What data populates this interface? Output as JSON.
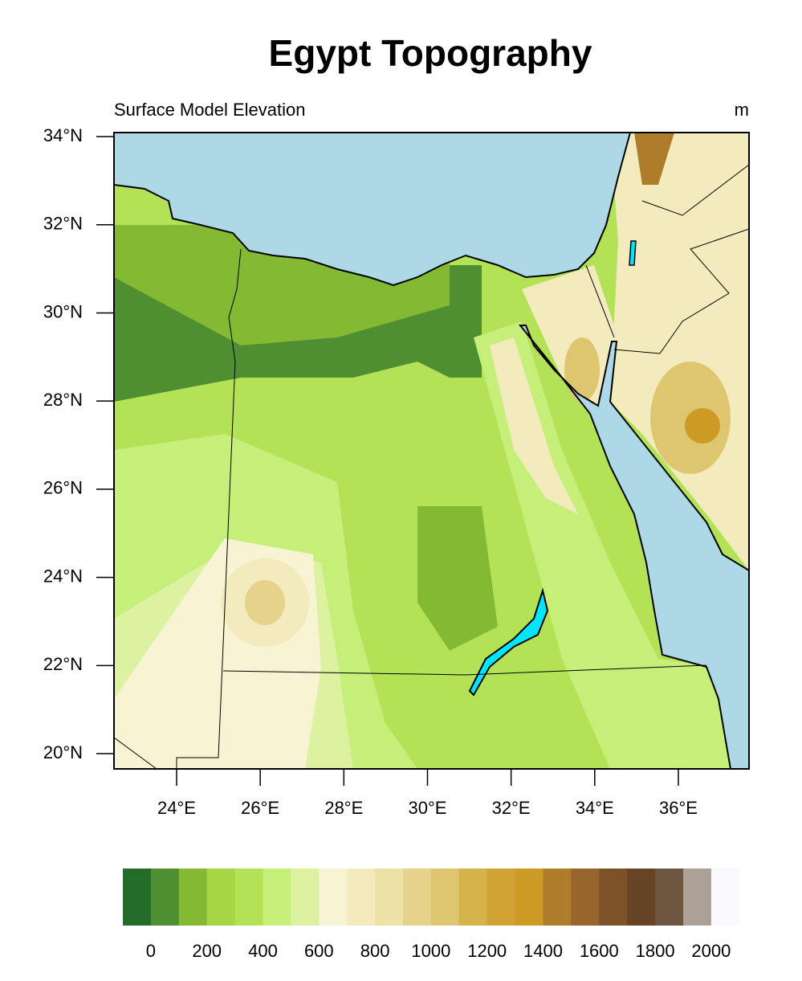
{
  "title": "Egypt Topography",
  "left_string": "Surface Model Elevation",
  "right_string": "m",
  "lat_ticks": [
    {
      "value": 34,
      "label": "34°N"
    },
    {
      "value": 32,
      "label": "32°N"
    },
    {
      "value": 30,
      "label": "30°N"
    },
    {
      "value": 28,
      "label": "28°N"
    },
    {
      "value": 26,
      "label": "26°N"
    },
    {
      "value": 24,
      "label": "24°N"
    },
    {
      "value": 22,
      "label": "22°N"
    },
    {
      "value": 20,
      "label": "20°N"
    }
  ],
  "lon_ticks": [
    {
      "value": 24,
      "label": "24°E"
    },
    {
      "value": 26,
      "label": "26°E"
    },
    {
      "value": 28,
      "label": "28°E"
    },
    {
      "value": 30,
      "label": "30°E"
    },
    {
      "value": 32,
      "label": "32°E"
    },
    {
      "value": 34,
      "label": "34°E"
    },
    {
      "value": 36,
      "label": "36°E"
    }
  ],
  "colorbar": {
    "colors": [
      "#236b29",
      "#4f8f31",
      "#84b933",
      "#a6d644",
      "#b3e256",
      "#c6ef7a",
      "#dcf2a1",
      "#f8f3d2",
      "#f3ebbe",
      "#ede2a5",
      "#e6d28b",
      "#ddc66f",
      "#d4b44a",
      "#cfa434",
      "#cd9a23",
      "#ad7d2a",
      "#98652e",
      "#7e5229",
      "#684427",
      "#6e5540",
      "#ada097",
      "#f8f8fd"
    ],
    "labels": [
      0,
      200,
      400,
      600,
      800,
      1000,
      1200,
      1400,
      1600,
      1800,
      2000
    ]
  }
}
